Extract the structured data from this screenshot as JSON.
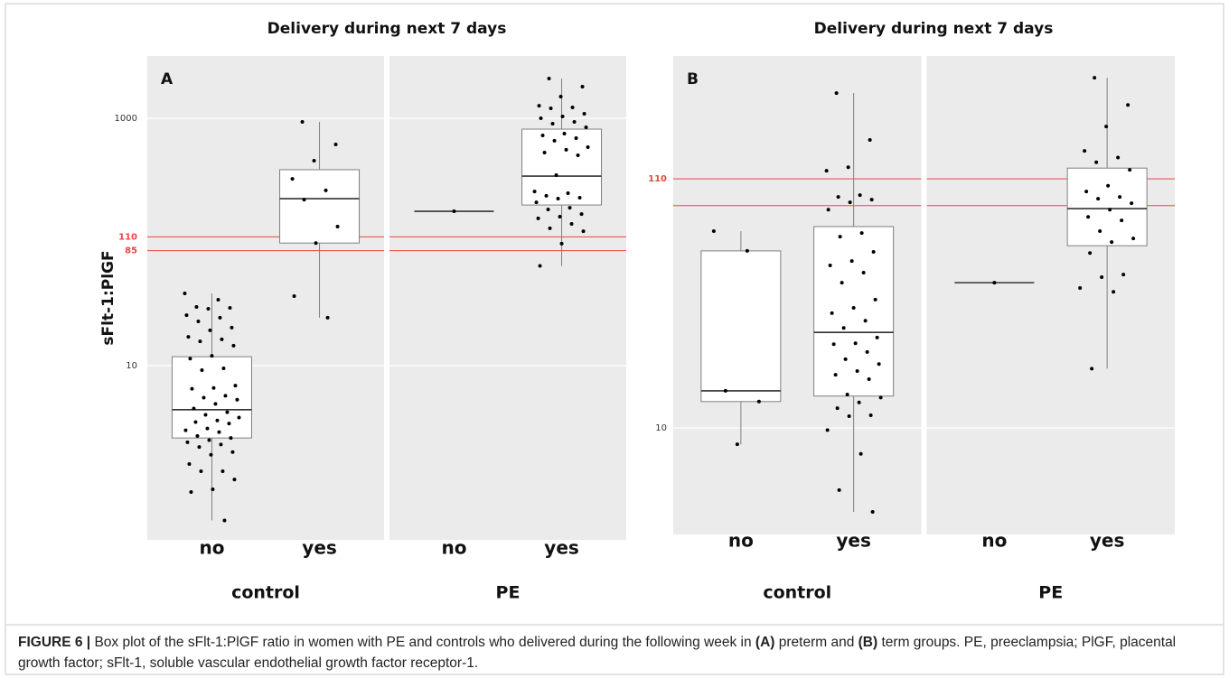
{
  "chart_data": [
    {
      "type": "box",
      "panel_label": "A",
      "title": "Delivery during next 7 days",
      "y_label": "sFlt-1:PlGF",
      "log_scale": true,
      "ylim": [
        0.39,
        3190
      ],
      "yticks": [
        10,
        1000
      ],
      "grid": true,
      "labeled_references": [
        110,
        85
      ],
      "unlabeled_references": [],
      "reference_color": "#e8473f",
      "box_color": "#7f7f7f",
      "point_color": "#000000",
      "facets": [
        {
          "name": "control",
          "groups": [
            {
              "name": "no",
              "whisker_low": 0.56,
              "q1": 2.6,
              "median": 4.4,
              "q3": 11.8,
              "whisker_high": 38.4,
              "points": [
                38.4,
                34.1,
                29.8,
                29.3,
                28.8,
                25.6,
                24.4,
                22.8,
                20.3,
                19.3,
                17.1,
                16.3,
                15.7,
                14.5,
                12.0,
                11.4,
                9.5,
                9.2,
                6.9,
                6.6,
                6.5,
                5.7,
                5.5,
                5.3,
                4.9,
                4.5,
                4.2,
                4.0,
                3.8,
                3.6,
                3.5,
                3.4,
                3.1,
                3.0,
                2.9,
                2.7,
                2.6,
                2.5,
                2.4,
                2.3,
                2.2,
                2.0,
                1.9,
                1.6,
                1.4,
                1.4,
                1.2,
                1.0,
                0.95,
                0.56
              ]
            },
            {
              "name": "yes",
              "whisker_low": 24.4,
              "q1": 98,
              "median": 224,
              "q3": 384,
              "whisker_high": 935,
              "points": [
                935,
                614,
                454,
                324,
                261,
                220,
                133,
                98,
                36.5,
                24.4
              ]
            }
          ]
        },
        {
          "name": "PE",
          "groups": [
            {
              "name": "no",
              "whisker_low": 177,
              "q1": 177,
              "median": 177,
              "q3": 177,
              "whisker_high": 177,
              "points": [
                177
              ]
            },
            {
              "name": "yes",
              "whisker_low": 64,
              "q1": 199,
              "median": 341,
              "q3": 817,
              "whisker_high": 2094,
              "points": [
                2094,
                1800,
                1496,
                1264,
                1223,
                1204,
                1087,
                1034,
                1000,
                935,
                904,
                846,
                752,
                727,
                691,
                658,
                584,
                556,
                528,
                502,
                347,
                256,
                248,
                236,
                228,
                224,
                209,
                189,
                183,
                168,
                160,
                155,
                140,
                129,
                122,
                97,
                64
              ]
            }
          ]
        }
      ]
    },
    {
      "type": "box",
      "panel_label": "B",
      "title": "Delivery during next 7 days",
      "log_scale": true,
      "ylim": [
        3.59,
        359
      ],
      "yticks": [
        10
      ],
      "grid": true,
      "labeled_references": [
        110
      ],
      "unlabeled_references": [
        85
      ],
      "reference_color": "#e8473f",
      "box_color": "#7f7f7f",
      "point_color": "#000000",
      "facets": [
        {
          "name": "control",
          "groups": [
            {
              "name": "no",
              "whisker_low": 8.55,
              "q1": 12.9,
              "median": 14.3,
              "q3": 55.0,
              "whisker_high": 66.5,
              "points": [
                66.5,
                55.0,
                14.3,
                12.9,
                8.55
              ]
            },
            {
              "name": "yes",
              "whisker_low": 4.46,
              "q1": 13.6,
              "median": 25.1,
              "q3": 69.5,
              "whisker_high": 251,
              "points": [
                251,
                160,
                123,
                119,
                94.1,
                92.5,
                90.1,
                87.8,
                81.8,
                65.3,
                63.1,
                54.5,
                49.9,
                47.8,
                44.6,
                40.5,
                34.4,
                31.8,
                30.2,
                28.1,
                26.2,
                23.9,
                22.6,
                22.4,
                20.8,
                19.4,
                18.5,
                17.3,
                16.7,
                16.0,
                13.8,
                13.4,
                12.8,
                12.1,
                11.3,
                11.2,
                9.8,
                7.8,
                5.5,
                4.46
              ]
            }
          ]
        },
        {
          "name": "PE",
          "groups": [
            {
              "name": "no",
              "whisker_low": 40.5,
              "q1": 40.5,
              "median": 40.5,
              "q3": 40.5,
              "whisker_high": 40.5,
              "points": [
                40.5
              ]
            },
            {
              "name": "yes",
              "whisker_low": 17.7,
              "q1": 57.8,
              "median": 82.6,
              "q3": 122,
              "whisker_high": 291,
              "points": [
                291,
                224,
                182,
                144,
                135,
                129,
                120,
                103,
                97.4,
                92.5,
                90.9,
                87.0,
                81.8,
                76.3,
                73.8,
                66.5,
                62.0,
                59.9,
                53.9,
                43.8,
                42.7,
                38.5,
                37.1,
                17.7
              ]
            }
          ]
        }
      ]
    }
  ],
  "caption": [
    {
      "text": "FIGURE 6 |",
      "bold": true
    },
    {
      "text": "Box plot of the sFlt-1:PlGF ratio in women with PE and controls who delivered during the following week in",
      "bold": false
    },
    {
      "text": "(A)",
      "bold": true
    },
    {
      "text": "preterm and",
      "bold": false
    },
    {
      "text": "(B)",
      "bold": true
    },
    {
      "text": "term groups. PE, preeclampsia; PlGF, placental growth factor; sFlt-1, soluble vascular endothelial growth factor receptor-1.",
      "bold": false
    }
  ]
}
